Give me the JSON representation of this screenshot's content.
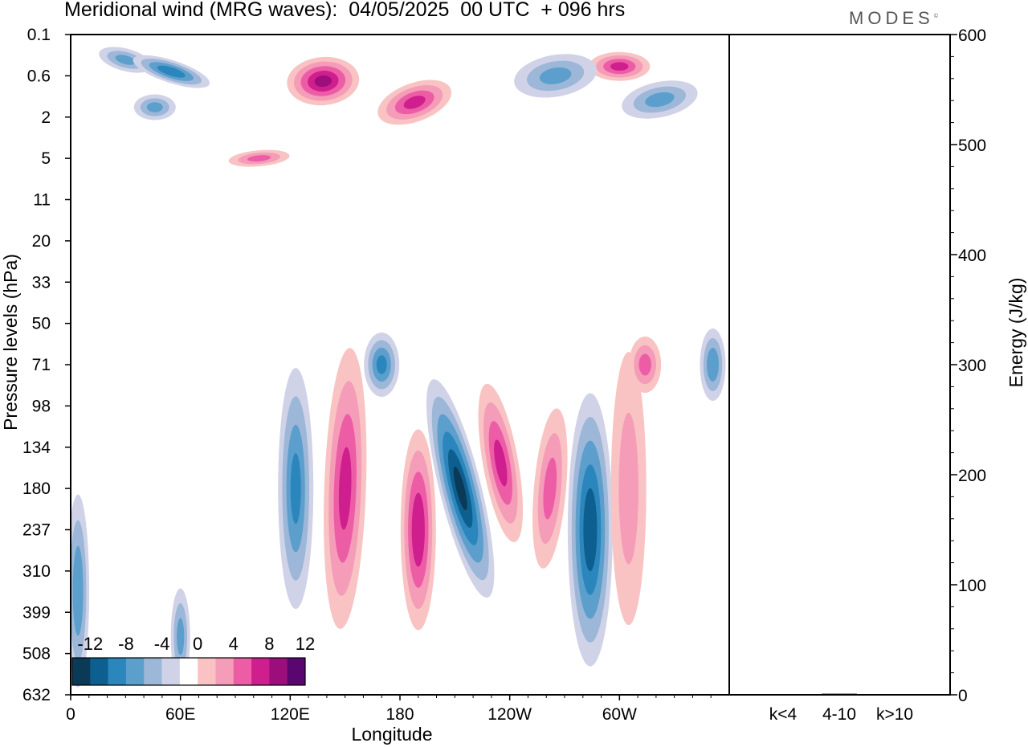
{
  "header": {
    "title": "Meridional wind (MRG waves):  04/05/2025  00 UTC  + 096 hrs",
    "logo": "MODES",
    "logo_mark": "©"
  },
  "chart_data": [
    {
      "type": "heatmap",
      "title": "Meridional wind (MRG waves):  04/05/2025  00 UTC  + 096 hrs",
      "xlabel": "Longitude",
      "ylabel": "Pressure levels (hPa)",
      "x_ticks": [
        {
          "lon": 0,
          "label": "0"
        },
        {
          "lon": 60,
          "label": "60E"
        },
        {
          "lon": 120,
          "label": "120E"
        },
        {
          "lon": 180,
          "label": "180"
        },
        {
          "lon": 240,
          "label": "120W"
        },
        {
          "lon": 300,
          "label": "60W"
        }
      ],
      "xlim": [
        0,
        360
      ],
      "y_levels": [
        "0.1",
        "0.6",
        "2",
        "5",
        "11",
        "20",
        "33",
        "50",
        "71",
        "98",
        "134",
        "180",
        "237",
        "310",
        "399",
        "508",
        "632"
      ],
      "colorbar": {
        "labels": [
          "-12",
          "-8",
          "-4",
          "0",
          "4",
          "8",
          "12"
        ],
        "bins": [
          {
            "min": -14,
            "max": -12,
            "color": "#0b3a57"
          },
          {
            "min": -12,
            "max": -10,
            "color": "#0d5f8f"
          },
          {
            "min": -10,
            "max": -8,
            "color": "#2a86bd"
          },
          {
            "min": -8,
            "max": -6,
            "color": "#5c9fcc"
          },
          {
            "min": -6,
            "max": -4,
            "color": "#9db7d8"
          },
          {
            "min": -4,
            "max": -2,
            "color": "#d0d3e8"
          },
          {
            "min": -2,
            "max": 2,
            "color": "#ffffff"
          },
          {
            "min": 2,
            "max": 4,
            "color": "#f9c3c3"
          },
          {
            "min": 4,
            "max": 6,
            "color": "#f49cb8"
          },
          {
            "min": 6,
            "max": 8,
            "color": "#ed5da6"
          },
          {
            "min": 8,
            "max": 10,
            "color": "#cf1e8d"
          },
          {
            "min": 10,
            "max": 12,
            "color": "#9b0e7c"
          },
          {
            "min": 12,
            "max": 14,
            "color": "#5a0570"
          }
        ]
      },
      "features": [
        {
          "lon": 30,
          "level": "0.3",
          "value": -6
        },
        {
          "lon": 46,
          "level": "1.5",
          "value": -6
        },
        {
          "lon": 55,
          "level": "0.5",
          "value": -9
        },
        {
          "lon": 138,
          "level": "0.7",
          "value": 10
        },
        {
          "lon": 188,
          "level": "1.3",
          "value": 8
        },
        {
          "lon": 300,
          "level": "0.4",
          "value": 8
        },
        {
          "lon": 265,
          "level": "0.6",
          "value": -6
        },
        {
          "lon": 322,
          "level": "1.2",
          "value": -6
        },
        {
          "lon": 103,
          "level": "5",
          "value": 6
        },
        {
          "lon": 123,
          "level": "180",
          "value": -8
        },
        {
          "lon": 150,
          "level": "180",
          "value": 8
        },
        {
          "lon": 190,
          "level": "237",
          "value": 9
        },
        {
          "lon": 213,
          "level": "180",
          "value": -12
        },
        {
          "lon": 235,
          "level": "150",
          "value": 8
        },
        {
          "lon": 262,
          "level": "180",
          "value": 6
        },
        {
          "lon": 284,
          "level": "237",
          "value": -11
        },
        {
          "lon": 305,
          "level": "180",
          "value": 4
        },
        {
          "lon": 170,
          "level": "71",
          "value": -8
        },
        {
          "lon": 314,
          "level": "71",
          "value": 6
        },
        {
          "lon": 351,
          "level": "71",
          "value": -7
        },
        {
          "lon": 4,
          "level": "350",
          "value": -7
        },
        {
          "lon": 60,
          "level": "460",
          "value": -6
        }
      ]
    },
    {
      "type": "bar",
      "categories": [
        "k<4",
        "4-10",
        "k>10"
      ],
      "values": [
        0,
        1,
        0
      ],
      "ylabel": "Energy (J/kg)",
      "ylim": [
        0,
        600
      ],
      "y_ticks": [
        0,
        100,
        200,
        300,
        400,
        500,
        600
      ]
    }
  ]
}
